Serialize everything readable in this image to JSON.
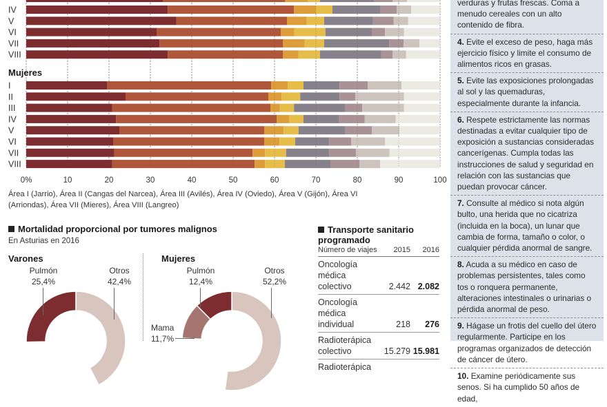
{
  "chart_data": [
    {
      "type": "bar",
      "orientation": "horizontal",
      "stacked": true,
      "title": "",
      "xlabel": "",
      "ylabel": "",
      "xlim": [
        0,
        100
      ],
      "x_ticks": [
        "0%",
        "10",
        "20",
        "30",
        "40",
        "50",
        "60",
        "70",
        "80",
        "90",
        "100"
      ],
      "grid": true,
      "segment_colors": [
        "#7d2d2f",
        "#b0563a",
        "#dc9d3a",
        "#e7bd4a",
        "#86818a",
        "#a89296",
        "#cdc5bd",
        "#ecebe3"
      ],
      "groups": [
        {
          "label": "",
          "categories": [
            "IV",
            "V",
            "VI",
            "VII",
            "VIII"
          ],
          "cumulative_boundaries": [
            [
              34.2,
              64.7,
              70.0,
              74.0,
              85.5,
              89.5,
              93.0,
              100
            ],
            [
              36.3,
              63.0,
              67.8,
              72.0,
              83.8,
              88.8,
              92.3,
              100
            ],
            [
              31.5,
              61.5,
              64.8,
              72.3,
              83.5,
              86.7,
              91.3,
              100
            ],
            [
              32.2,
              62.0,
              67.3,
              72.0,
              87.7,
              91.2,
              95.0,
              100
            ],
            [
              34.2,
              62.0,
              65.8,
              71.0,
              85.8,
              88.5,
              91.8,
              100
            ]
          ]
        },
        {
          "label": "Mujeres",
          "categories": [
            "I",
            "II",
            "III",
            "IV",
            "V",
            "VI",
            "VII",
            "VIII"
          ],
          "cumulative_boundaries": [
            [
              19.5,
              59.2,
              63.2,
              67.0,
              75.7,
              82.5,
              90.7,
              100
            ],
            [
              24.0,
              58.5,
              61.7,
              66.2,
              75.7,
              79.5,
              91.3,
              100
            ],
            [
              20.8,
              59.0,
              61.3,
              64.7,
              77.0,
              81.2,
              91.3,
              100
            ],
            [
              21.7,
              60.5,
              63.5,
              67.0,
              75.5,
              81.8,
              89.3,
              100
            ],
            [
              22.5,
              57.5,
              62.2,
              65.8,
              77.0,
              83.5,
              90.2,
              100
            ],
            [
              21.0,
              57.5,
              61.2,
              65.0,
              73.2,
              78.5,
              86.7,
              100
            ],
            [
              21.3,
              54.7,
              57.7,
              62.8,
              73.2,
              79.7,
              87.8,
              100
            ],
            [
              20.8,
              55.2,
              57.7,
              62.5,
              73.5,
              80.5,
              85.5,
              100
            ]
          ]
        }
      ],
      "annotation": "Área I (Jarrio), Área II (Cangas del Narcea), Área III (Avilés), Área IV (Oviedo), Área V (Gijón), Área VI (Arriondas), Área VII (Mieres), Área VIII (Langreo)"
    },
    {
      "type": "pie",
      "variant": "donut",
      "title": "Varones",
      "slices": [
        {
          "label": "Pulmón",
          "value": 25.4,
          "display": "25,4%",
          "color": "#7d2d2f"
        },
        {
          "label": "Otros",
          "value": 42.4,
          "display": "42,4%",
          "color": "#d8c5bd"
        }
      ]
    },
    {
      "type": "pie",
      "variant": "donut",
      "title": "Mujeres",
      "slices": [
        {
          "label": "Pulmón",
          "value": 12.4,
          "display": "12,4%",
          "color": "#7d2d2f"
        },
        {
          "label": "Mama",
          "value": 11.7,
          "display": "11,7%",
          "color": "#a5766f"
        },
        {
          "label": "Otros",
          "value": 52.2,
          "display": "52,2%",
          "color": "#d8c5bd"
        }
      ]
    }
  ],
  "mortalidad": {
    "title": "Mortalidad proporcional por tumores malignos",
    "subtitle": "En Asturias en 2016",
    "varones_label": "Varones",
    "mujeres_label": "Mujeres"
  },
  "transporte": {
    "title_line1": "Transporte sanitario",
    "title_line2": "programado",
    "header": [
      "Número de viajes",
      "2015",
      "2016"
    ],
    "rows": [
      {
        "l1": "Oncología médica",
        "l2": "colectivo",
        "y2015": "2.442",
        "y2016": "2.082"
      },
      {
        "l1": "Oncología médica",
        "l2": "individual",
        "y2015": "218",
        "y2016": "276"
      },
      {
        "l1": "Radioterápica",
        "l2": "colectivo",
        "y2015": "15.279",
        "y2016": "15.981"
      },
      {
        "l1": "Radioterápica",
        "l2": "",
        "y2015": "",
        "y2016": ""
      }
    ]
  },
  "tips": [
    {
      "num": "",
      "text": "verduras y frutas frescas. Coma a menudo cereales con un alto contenido de fibra."
    },
    {
      "num": "4.",
      "text": "Evite el exceso de peso, haga más ejercicio físico y limite el consumo de alimentos ricos en grasas."
    },
    {
      "num": "5.",
      "text": "Evite las exposiciones prolongadas al sol y las quemaduras, especialmente durante la infancia."
    },
    {
      "num": "6.",
      "text": "Respete estrictamente las normas destinadas a evitar cualquier tipo de exposición a sustancias consideradas cancerígenas. Cumpla todas las instrucciones de salud y seguridad en relación con las sustancias que puedan provocar cáncer."
    },
    {
      "num": "7.",
      "text": "Consulte al médico si nota algún bulto, una herida que no cicatriza (incluida en la boca), un lunar que cambia de forma, tamaño o color, o cualquier pérdida anormal de sangre."
    },
    {
      "num": "8.",
      "text": "Acuda a su médico en caso de problemas persistentes, tales como tos o ronquera permanente, alteraciones intestinales o urinarias o pérdida anormal de peso."
    },
    {
      "num": "9.",
      "text": "Hágase un frotis del cuello del útero regularmente. Participe en los programas organizados de detección de cáncer de útero."
    },
    {
      "num": "10.",
      "text": "Examine periódicamente sus senos. Si ha cumplido 50 años de edad,"
    }
  ]
}
